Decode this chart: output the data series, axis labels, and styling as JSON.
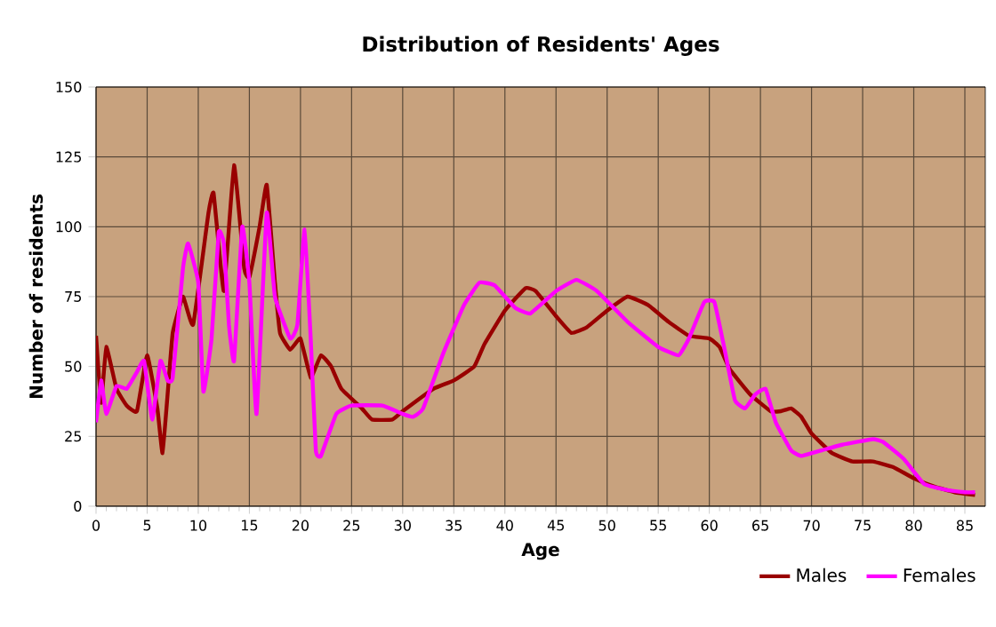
{
  "chart_data": {
    "type": "line",
    "title": "Distribution of Residents' Ages",
    "xlabel": "Age",
    "ylabel": "Number of residents",
    "xlim": [
      0,
      87
    ],
    "ylim": [
      0,
      150
    ],
    "xticks": [
      0,
      5,
      10,
      15,
      20,
      25,
      30,
      35,
      40,
      45,
      50,
      55,
      60,
      65,
      70,
      75,
      80,
      85
    ],
    "yticks": [
      0,
      25,
      50,
      75,
      100,
      125,
      150
    ],
    "grid": true,
    "legend": "bottom right",
    "line_style": "solid",
    "series": [
      {
        "name": "Males",
        "color": "#990000",
        "x": [
          0,
          0.5,
          1,
          2,
          3,
          4,
          5,
          6,
          6.5,
          7,
          7.5,
          8.5,
          9.5,
          11,
          11.5,
          12.5,
          13.5,
          14.5,
          15,
          16,
          16.7,
          17.5,
          18,
          19,
          20,
          21,
          22,
          23,
          24,
          26,
          27,
          29,
          30,
          33,
          35,
          37,
          38,
          40,
          42,
          43,
          45,
          46.5,
          48,
          50,
          52,
          54,
          56,
          58,
          60,
          61,
          62,
          64,
          66,
          67,
          68,
          69,
          70,
          72,
          74,
          76,
          78,
          80,
          82,
          84,
          86
        ],
        "values": [
          61,
          37,
          57,
          42,
          36,
          34,
          54,
          35,
          19,
          40,
          62,
          75,
          65,
          105,
          112,
          77,
          122,
          85,
          82,
          100,
          115,
          80,
          62,
          56,
          60,
          46,
          54,
          50,
          42,
          35,
          31,
          31,
          34,
          42,
          45,
          50,
          58,
          70,
          78,
          77,
          68,
          62,
          64,
          70,
          75,
          72,
          66,
          61,
          60,
          57,
          49,
          40,
          34,
          34,
          35,
          32,
          26,
          19,
          16,
          16,
          14,
          10,
          7,
          5,
          4
        ]
      },
      {
        "name": "Females",
        "color": "#ff00ff",
        "x": [
          0,
          0.5,
          1,
          2,
          3,
          4,
          4.7,
          5.5,
          6.3,
          7,
          7.5,
          8.5,
          9,
          10,
          10.5,
          11.3,
          12,
          12.5,
          13,
          13.5,
          14.3,
          15,
          15.7,
          16.7,
          17.5,
          19,
          19.7,
          20.4,
          21,
          21.5,
          22,
          23.5,
          25,
          28,
          30,
          31,
          32,
          34,
          36,
          37.5,
          39,
          41,
          42.5,
          45,
          47,
          49,
          52,
          55,
          57,
          58,
          59.5,
          60.5,
          61.5,
          62.5,
          63.5,
          64.5,
          65.5,
          66.5,
          68,
          69,
          71,
          73,
          76,
          77,
          79,
          81,
          83,
          85,
          86
        ],
        "values": [
          30,
          45,
          33,
          43,
          42,
          48,
          52,
          31,
          52,
          45,
          46,
          85,
          94,
          80,
          41,
          60,
          98,
          94,
          65,
          52,
          100,
          80,
          33,
          105,
          75,
          60,
          65,
          99,
          60,
          20,
          18,
          33,
          36,
          36,
          33,
          32,
          35,
          55,
          72,
          80,
          79,
          71,
          69,
          77,
          81,
          77,
          66,
          57,
          54,
          60,
          73,
          73,
          56,
          38,
          35,
          40,
          42,
          30,
          20,
          18,
          20,
          22,
          24,
          23,
          17,
          8,
          6,
          5,
          5
        ]
      }
    ]
  }
}
